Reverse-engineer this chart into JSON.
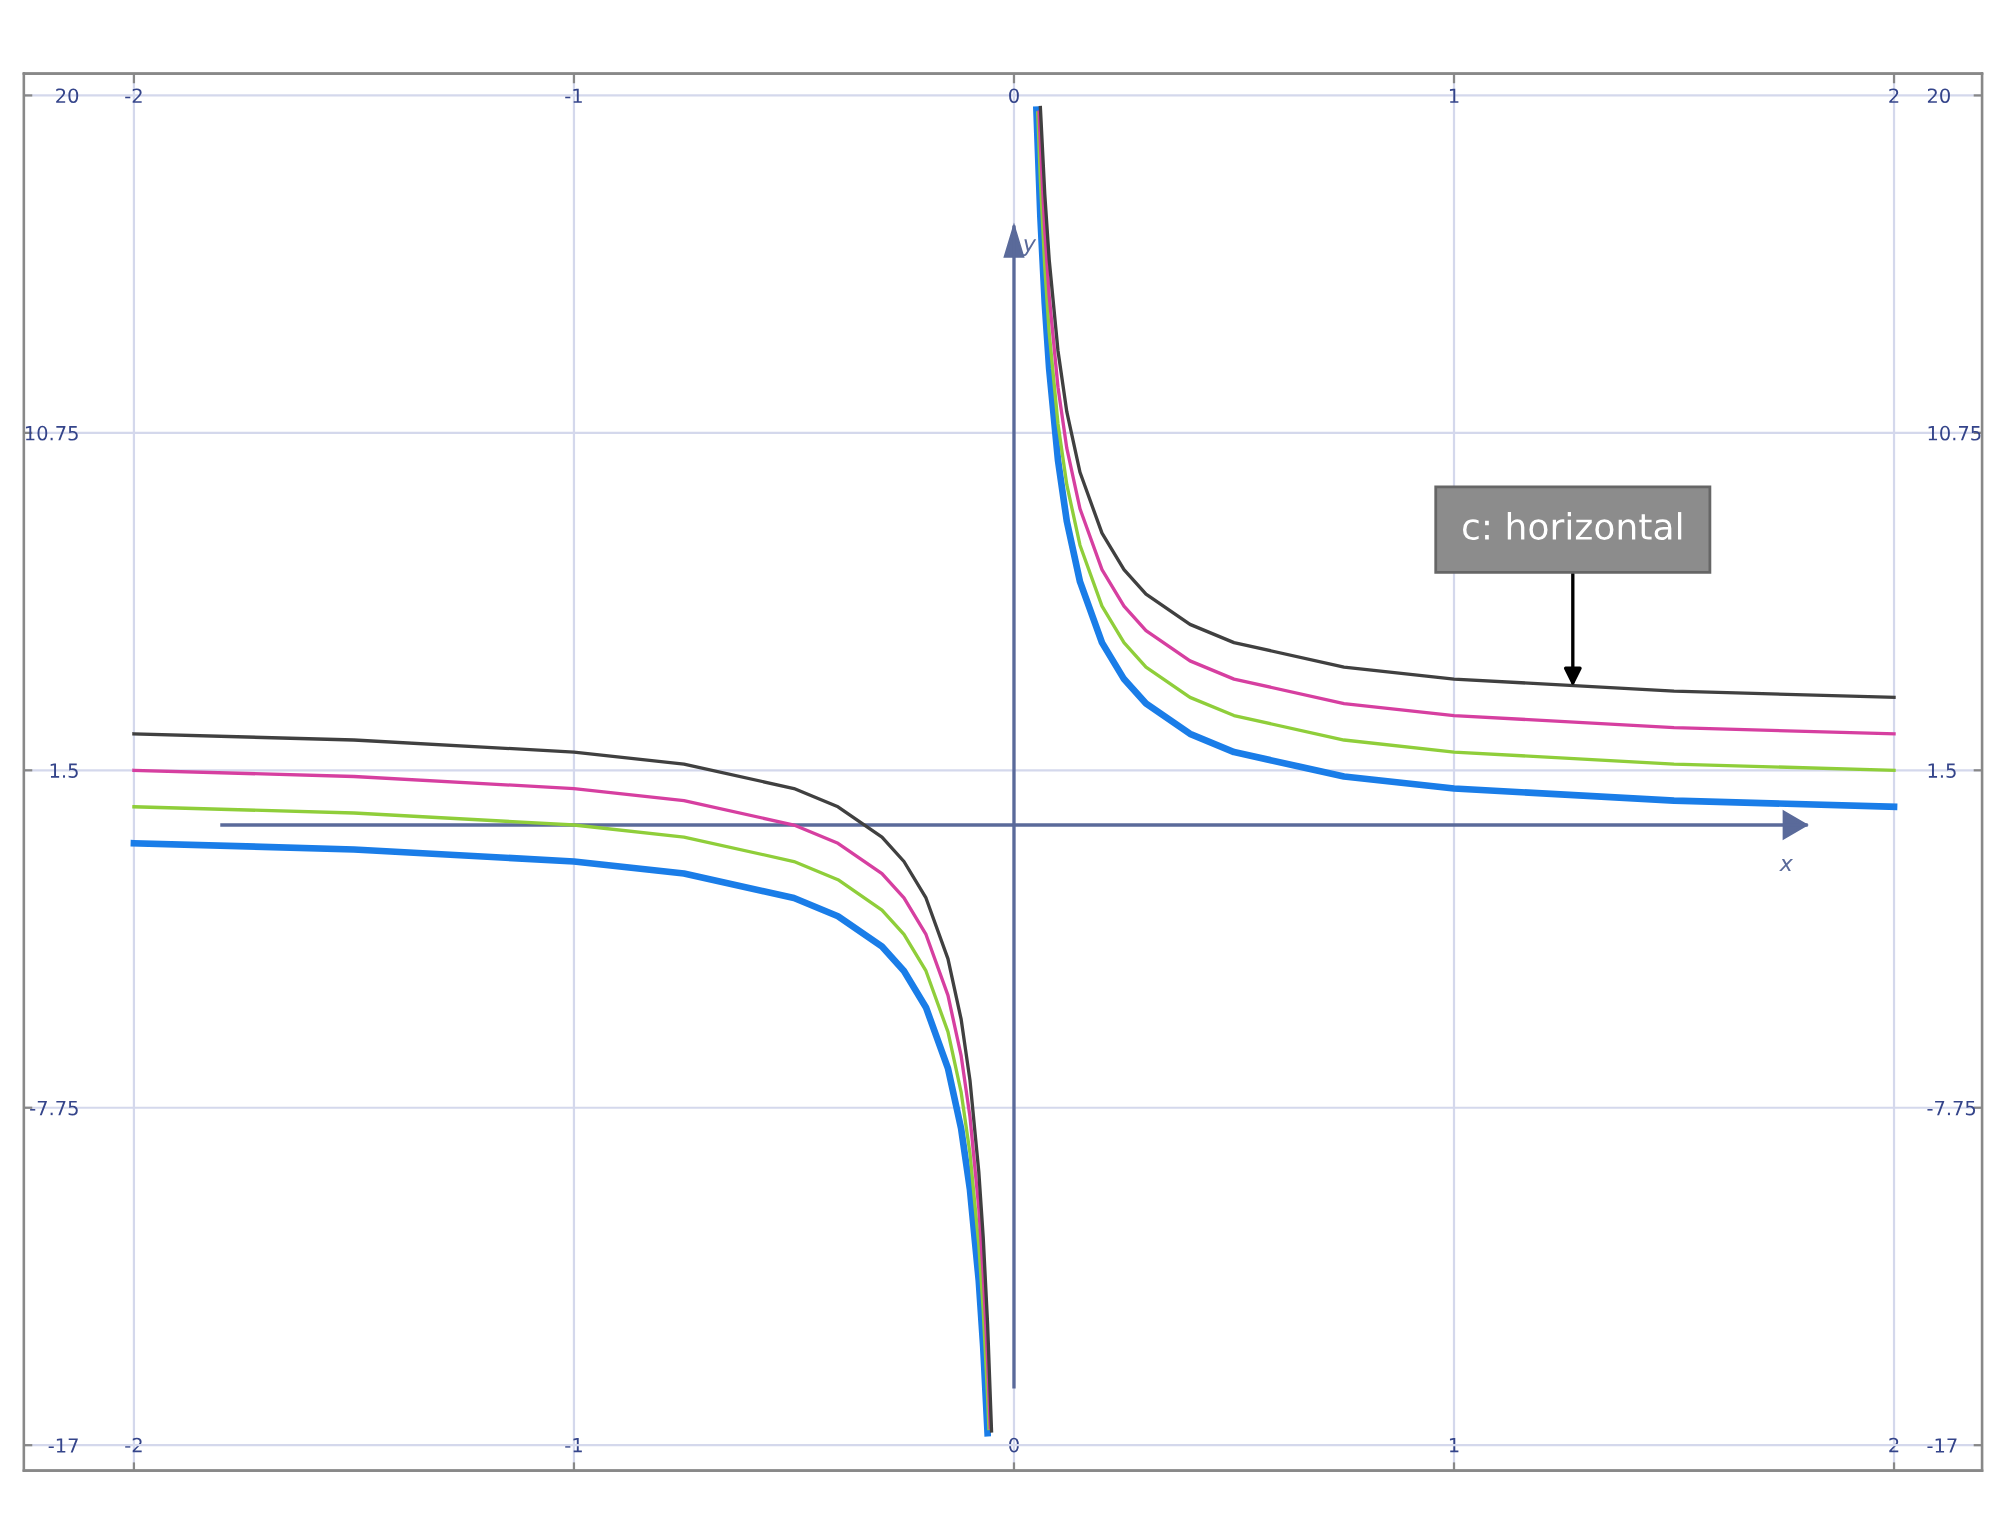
{
  "chart_data": {
    "type": "line",
    "xlim": [
      -2.25,
      2.2
    ],
    "ylim": [
      -17.7,
      20.6
    ],
    "xticks": [
      -2,
      -1,
      0,
      1,
      2
    ],
    "yticks": [
      -17,
      -7.75,
      1.5,
      10.75,
      20
    ],
    "x2lim": [
      -2.25,
      2.2
    ],
    "x2ticks": [
      -2,
      -1,
      0,
      1,
      2
    ],
    "y2lim": [
      -17.7,
      20.6
    ],
    "y2ticks": [
      -17,
      -7.75,
      1.5,
      10.75,
      20
    ],
    "grid": true,
    "legend": false,
    "marker": "none",
    "line_style": "solid",
    "ref_lines": [
      {
        "axis": "y",
        "value": 0,
        "label": "x",
        "color": "#5a6a9a"
      },
      {
        "axis": "x",
        "value": 0,
        "label": "y",
        "color": "#5a6a9a"
      }
    ],
    "annotations": [
      {
        "text": "c: horizontal",
        "x": 1.27,
        "y": 3.8
      }
    ],
    "series": [
      {
        "color": "#1a7de8",
        "x": [
          -2,
          -1.5,
          -1,
          -0.75,
          -0.5,
          -0.4,
          -0.3,
          -0.25,
          -0.2,
          -0.15,
          -0.12,
          -0.1,
          -0.08,
          -0.07,
          -0.06,
          0,
          0.051,
          0.06,
          0.07,
          0.08,
          0.1,
          0.12,
          0.15,
          0.2,
          0.25,
          0.3,
          0.4,
          0.5,
          0.75,
          1,
          1.5,
          2
        ],
        "values": [
          -0.5,
          -0.67,
          -1,
          -1.33,
          -2,
          -2.5,
          -3.33,
          -4,
          -5,
          -6.67,
          -8.33,
          -10,
          -12.5,
          -14.29,
          -16.67,
          null,
          19.61,
          16.67,
          14.29,
          12.5,
          10,
          8.33,
          6.67,
          5,
          4,
          3.33,
          2.5,
          2,
          1.33,
          1,
          0.67,
          0.5
        ]
      },
      {
        "color": "#8fce3a",
        "x": [
          -2,
          -1.5,
          -1,
          -0.75,
          -0.5,
          -0.4,
          -0.3,
          -0.25,
          -0.2,
          -0.15,
          -0.12,
          -0.1,
          -0.08,
          -0.07,
          -0.06,
          -0.057,
          0,
          0.054,
          0.06,
          0.07,
          0.08,
          0.1,
          0.12,
          0.15,
          0.2,
          0.25,
          0.3,
          0.4,
          0.5,
          0.75,
          1,
          1.5,
          2
        ],
        "values": [
          0.5,
          0.33,
          0,
          -0.33,
          -1,
          -1.5,
          -2.33,
          -3,
          -4,
          -5.67,
          -7.33,
          -9,
          -11.5,
          -13.29,
          -15.67,
          -16.54,
          null,
          19.52,
          17.67,
          15.29,
          13.5,
          11,
          9.33,
          7.67,
          6,
          5,
          4.33,
          3.5,
          3,
          2.33,
          2,
          1.67,
          1.5
        ]
      },
      {
        "color": "#d63fa0",
        "x": [
          -2,
          -1.5,
          -1,
          -0.75,
          -0.5,
          -0.4,
          -0.3,
          -0.25,
          -0.2,
          -0.15,
          -0.12,
          -0.1,
          -0.08,
          -0.07,
          -0.06,
          -0.054,
          0,
          0.057,
          0.06,
          0.07,
          0.08,
          0.1,
          0.12,
          0.15,
          0.2,
          0.25,
          0.3,
          0.4,
          0.5,
          0.75,
          1,
          1.5,
          2
        ],
        "values": [
          1.5,
          1.33,
          1,
          0.67,
          0,
          -0.5,
          -1.33,
          -2,
          -3,
          -4.67,
          -6.33,
          -8,
          -10.5,
          -12.29,
          -14.67,
          -16.52,
          null,
          19.54,
          18.67,
          16.29,
          14.5,
          12,
          10.33,
          8.67,
          7,
          6,
          5.33,
          4.5,
          4,
          3.33,
          3,
          2.67,
          2.5
        ]
      },
      {
        "color": "#404040",
        "x": [
          -2,
          -1.5,
          -1,
          -0.75,
          -0.5,
          -0.4,
          -0.3,
          -0.25,
          -0.2,
          -0.15,
          -0.12,
          -0.1,
          -0.08,
          -0.07,
          -0.06,
          -0.051,
          0,
          0.06,
          0.07,
          0.08,
          0.1,
          0.12,
          0.15,
          0.2,
          0.25,
          0.3,
          0.4,
          0.5,
          0.75,
          1,
          1.5,
          2
        ],
        "values": [
          2.5,
          2.33,
          2,
          1.67,
          1,
          0.5,
          -0.33,
          -1,
          -2,
          -3.67,
          -5.33,
          -7,
          -9.5,
          -11.29,
          -13.67,
          -16.61,
          null,
          19.67,
          17.29,
          15.5,
          13,
          11.33,
          9.67,
          8,
          7,
          6.33,
          5.5,
          5,
          4.33,
          4,
          3.67,
          3.5
        ]
      }
    ]
  }
}
